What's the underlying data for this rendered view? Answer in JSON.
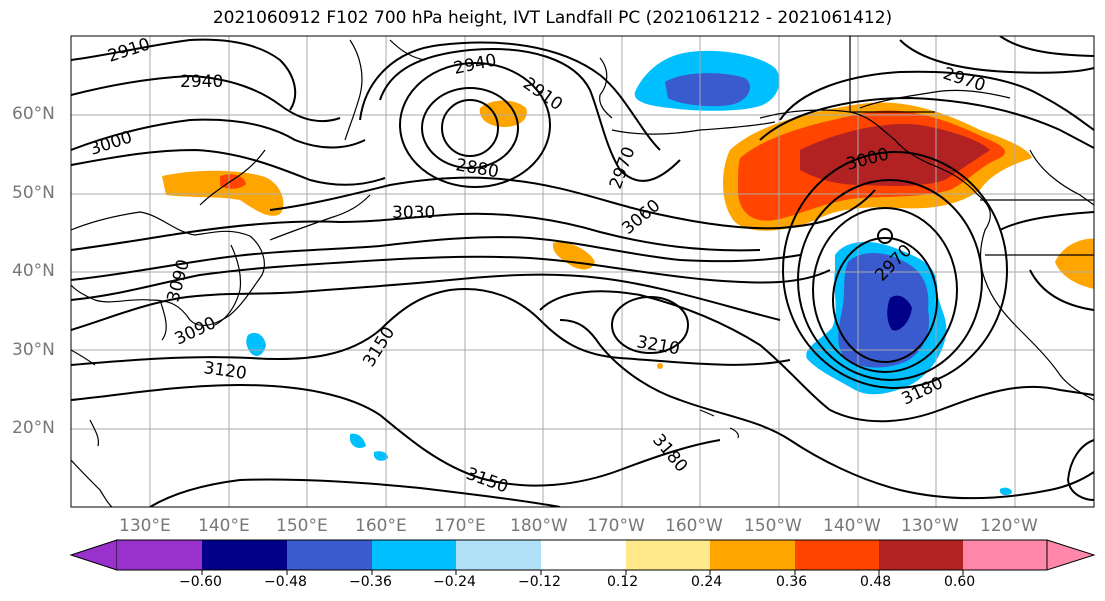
{
  "title": "2021060912 F102 700 hPa height, IVT Landfall PC (2021061212 - 2021061412)",
  "lat_labels": [
    "60°N",
    "50°N",
    "40°N",
    "30°N",
    "20°N"
  ],
  "lon_labels": [
    "130°E",
    "140°E",
    "150°E",
    "160°E",
    "170°E",
    "180°W",
    "170°W",
    "160°W",
    "150°W",
    "140°W",
    "130°W",
    "120°W"
  ],
  "contour_labels": [
    "2910",
    "2940",
    "2940",
    "2910",
    "2880",
    "2970",
    "3000",
    "3000",
    "2970",
    "3030",
    "3060",
    "2970",
    "3090",
    "3090",
    "3150",
    "3120",
    "3210",
    "3180",
    "3180",
    "3150"
  ],
  "colorbar": {
    "ticks": [
      "−0.60",
      "−0.48",
      "−0.36",
      "−0.24",
      "−0.12",
      "0.12",
      "0.24",
      "0.36",
      "0.48",
      "0.60"
    ],
    "colors": [
      "#9932cc",
      "#00008b",
      "#3a5bcd",
      "#00bfff",
      "#b0e0f8",
      "#ffffff",
      "#ffe98a",
      "#ffa500",
      "#ff4500",
      "#b22222",
      "#ff88aa"
    ]
  }
}
